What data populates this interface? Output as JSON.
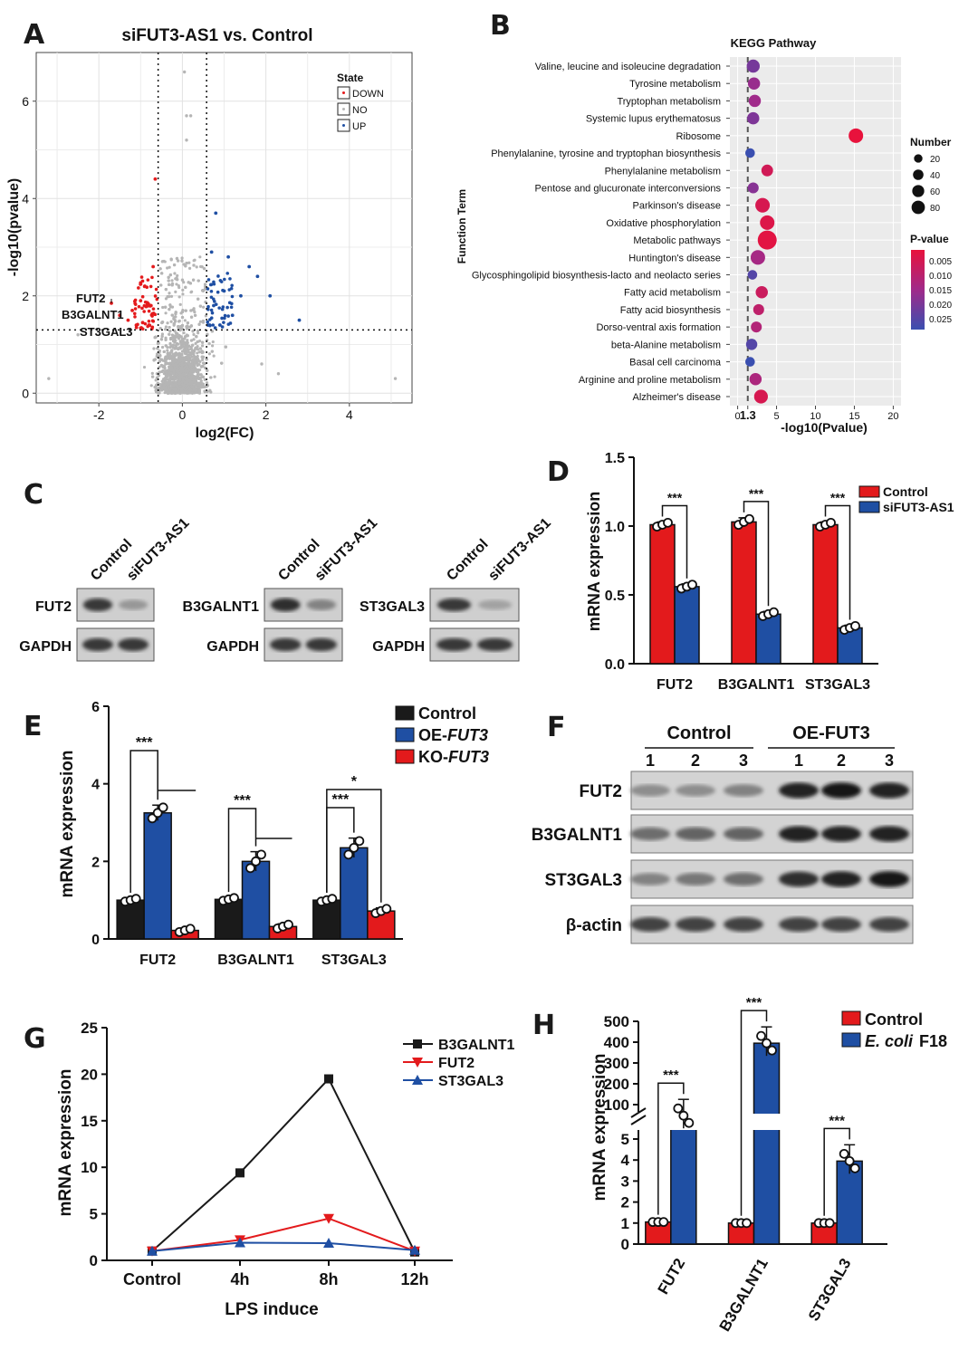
{
  "panel_labels": [
    "A",
    "B",
    "C",
    "D",
    "E",
    "F",
    "G",
    "H"
  ],
  "chart_data": [
    {
      "panel": "A",
      "type": "scatter",
      "title": "siFUT3-AS1 vs. Control",
      "xlabel": "log2(FC)",
      "ylabel": "-log10(pvalue)",
      "xlim": [
        -3.5,
        5.5
      ],
      "ylim": [
        -0.2,
        7
      ],
      "xticks": [
        "-2",
        "0",
        "2",
        "4"
      ],
      "yticks": [
        "0",
        "2",
        "4",
        "6"
      ],
      "thresholds": {
        "x": [
          -0.58,
          0.58
        ],
        "y": 1.3
      },
      "legend_title": "State",
      "legend_entries": [
        "DOWN",
        "NO",
        "UP"
      ],
      "colors": {
        "DOWN": "#e41a1c",
        "NO": "#b5b5b5",
        "UP": "#1f4fa3"
      },
      "labeled_genes": [
        "FUT2",
        "B3GALNT1",
        "ST3GAL3"
      ],
      "background_points": 3000,
      "down_points": [
        [
          -1.7,
          1.85
        ],
        [
          -1.5,
          1.6
        ],
        [
          -1.3,
          1.5
        ],
        [
          -1.2,
          1.7
        ],
        [
          -1.0,
          1.9
        ],
        [
          -0.9,
          2.2
        ],
        [
          -0.8,
          1.4
        ],
        [
          -0.7,
          2.6
        ],
        [
          -0.65,
          4.4
        ],
        [
          -1.1,
          1.35
        ],
        [
          -0.75,
          1.8
        ],
        [
          -0.95,
          1.45
        ]
      ],
      "up_points": [
        [
          0.7,
          2.9
        ],
        [
          0.8,
          3.7
        ],
        [
          1.0,
          2.1
        ],
        [
          1.2,
          1.6
        ],
        [
          1.4,
          2.0
        ],
        [
          1.6,
          2.6
        ],
        [
          1.8,
          2.4
        ],
        [
          2.1,
          2.0
        ],
        [
          2.8,
          1.5
        ],
        [
          0.9,
          1.4
        ],
        [
          1.1,
          2.8
        ],
        [
          0.75,
          1.8
        ]
      ]
    },
    {
      "panel": "B",
      "type": "scatter",
      "title": "KEGG Pathway",
      "xlabel": "-log10(Pvalue)",
      "ylabel": "Function Term",
      "xticks": [
        "0",
        "1.3",
        "5",
        "10",
        "15",
        "20"
      ],
      "xlim": [
        -1,
        21
      ],
      "threshold": 1.3,
      "highlight_color": "#e00000",
      "terms": [
        "Valine, leucine and isoleucine degradation",
        "Tyrosine metabolism",
        "Tryptophan metabolism",
        "Systemic lupus erythematosus",
        "Ribosome",
        "Phenylalanine, tyrosine and tryptophan biosynthesis",
        "Phenylalanine metabolism",
        "Pentose and glucuronate interconversions",
        "Parkinson's disease",
        "Oxidative phosphorylation",
        "Metabolic pathways",
        "Huntington's disease",
        "Glycosphingolipid biosynthesis-lacto and neolacto series",
        "Fatty acid metabolism",
        "Fatty acid biosynthesis",
        "Dorso-ventral axis formation",
        "beta-Alanine metabolism",
        "Basal cell carcinoma",
        "Arginine and proline metabolism",
        "Alzheimer's disease"
      ],
      "highlight_index": 12,
      "x": [
        2.0,
        2.1,
        2.2,
        2.0,
        15.2,
        1.6,
        3.8,
        2.0,
        3.2,
        3.8,
        3.8,
        2.6,
        1.9,
        3.1,
        2.7,
        2.4,
        1.8,
        1.6,
        2.3,
        3.0
      ],
      "number": [
        30,
        25,
        25,
        25,
        40,
        12,
        22,
        18,
        40,
        40,
        80,
        40,
        12,
        25,
        18,
        18,
        20,
        12,
        25,
        35
      ],
      "pvalue": [
        0.018,
        0.014,
        0.013,
        0.017,
        0.001,
        0.025,
        0.005,
        0.016,
        0.004,
        0.003,
        0.002,
        0.012,
        0.022,
        0.006,
        0.008,
        0.01,
        0.022,
        0.025,
        0.011,
        0.004
      ],
      "size_legend_title": "Number",
      "size_legend": [
        20,
        40,
        60,
        80
      ],
      "color_legend_title": "P-value",
      "color_legend_ticks": [
        "0.005",
        "0.010",
        "0.015",
        "0.020",
        "0.025"
      ],
      "colorscale": [
        "#e8123c",
        "#3a4fb0"
      ]
    },
    {
      "panel": "D",
      "type": "bar",
      "ylabel": "mRNA expression",
      "categories": [
        "FUT2",
        "B3GALNT1",
        "ST3GAL3"
      ],
      "ylim": [
        0,
        1.5
      ],
      "yticks": [
        "0.0",
        "0.5",
        "1.0",
        "1.5"
      ],
      "series": [
        {
          "name": "Control",
          "color": "#e31a1c",
          "values": [
            1.01,
            1.03,
            1.01
          ],
          "errors": [
            0.02,
            0.03,
            0.02
          ]
        },
        {
          "name": "siFUT3-AS1",
          "color": "#1f4fa3",
          "values": [
            0.56,
            0.36,
            0.26
          ],
          "errors": [
            0.02,
            0.02,
            0.02
          ]
        }
      ],
      "significance": [
        "***",
        "***",
        "***"
      ]
    },
    {
      "panel": "E",
      "type": "bar",
      "ylabel": "mRNA expression",
      "categories": [
        "FUT2",
        "B3GALNT1",
        "ST3GAL3"
      ],
      "ylim": [
        0,
        6
      ],
      "yticks": [
        "0",
        "2",
        "4",
        "6"
      ],
      "legend_entries": [
        "Control",
        "OE-",
        "KO-"
      ],
      "legend_italic": "FUT3",
      "series": [
        {
          "name": "Control",
          "color": "#1a1a1a",
          "values": [
            1.0,
            1.02,
            1.0
          ],
          "errors": [
            0.05,
            0.05,
            0.05
          ]
        },
        {
          "name": "OE-FUT3",
          "color": "#1f4fa3",
          "values": [
            3.25,
            2.0,
            2.35
          ],
          "errors": [
            0.2,
            0.25,
            0.25
          ]
        },
        {
          "name": "KO-FUT3",
          "color": "#e31a1c",
          "values": [
            0.22,
            0.32,
            0.72
          ],
          "errors": [
            0.06,
            0.07,
            0.08
          ]
        }
      ],
      "significance": [
        "***",
        "***",
        "***",
        "*"
      ]
    },
    {
      "panel": "G",
      "type": "line",
      "xlabel": "LPS induce",
      "ylabel": "mRNA expression",
      "categories": [
        "Control",
        "4h",
        "8h",
        "12h"
      ],
      "ylim": [
        0,
        25
      ],
      "yticks": [
        "0",
        "5",
        "10",
        "15",
        "20",
        "25"
      ],
      "series": [
        {
          "name": "B3GALNT1",
          "color": "#1a1a1a",
          "marker": "square",
          "values": [
            1.0,
            9.4,
            19.5,
            0.9
          ]
        },
        {
          "name": "FUT2",
          "color": "#e31a1c",
          "marker": "triangle-down",
          "values": [
            1.0,
            2.2,
            4.5,
            1.0
          ]
        },
        {
          "name": "ST3GAL3",
          "color": "#1f4fa3",
          "marker": "triangle-up",
          "values": [
            1.0,
            1.9,
            1.85,
            1.1
          ]
        }
      ]
    },
    {
      "panel": "H",
      "type": "bar",
      "ylabel": "mRNA expression",
      "categories": [
        "FUT2",
        "B3GALNT1",
        "ST3GAL3"
      ],
      "yticks_lower": [
        "0",
        "1",
        "2",
        "3",
        "4",
        "5"
      ],
      "yticks_upper": [
        "100",
        "200",
        "300",
        "400",
        "500"
      ],
      "legend_entries": [
        "Control",
        "E. coli"
      ],
      "legend_suffix": "F18",
      "series": [
        {
          "name": "Control",
          "color": "#e31a1c",
          "values": [
            1.05,
            1.0,
            1.0
          ]
        },
        {
          "name": "E. coli F18",
          "color": "#1f4fa3",
          "values": [
            47,
            395,
            3.95
          ]
        }
      ],
      "significance": [
        "***",
        "***",
        "***"
      ]
    }
  ],
  "blots": {
    "C": {
      "columns": [
        "Control",
        "siFUT3-AS1"
      ],
      "panels": [
        {
          "target": "FUT2",
          "loading": "GAPDH",
          "intensity": [
            0.85,
            0.4
          ]
        },
        {
          "target": "B3GALNT1",
          "loading": "GAPDH",
          "intensity": [
            0.9,
            0.5
          ]
        },
        {
          "target": "ST3GAL3",
          "loading": "GAPDH",
          "intensity": [
            0.85,
            0.35
          ]
        }
      ]
    },
    "F": {
      "groups": [
        "Control",
        "OE-FUT3"
      ],
      "lanes": [
        "1",
        "2",
        "3",
        "1",
        "2",
        "3"
      ],
      "rows": [
        {
          "label": "FUT2",
          "intensity": [
            0.45,
            0.45,
            0.5,
            0.95,
            1.0,
            0.95
          ]
        },
        {
          "label": "B3GALNT1",
          "intensity": [
            0.6,
            0.65,
            0.65,
            0.95,
            0.95,
            0.95
          ]
        },
        {
          "label": "ST3GAL3",
          "intensity": [
            0.5,
            0.55,
            0.6,
            0.9,
            0.95,
            1.0
          ]
        },
        {
          "label": "β-actin",
          "intensity": [
            0.8,
            0.8,
            0.8,
            0.8,
            0.8,
            0.8
          ]
        }
      ]
    }
  }
}
